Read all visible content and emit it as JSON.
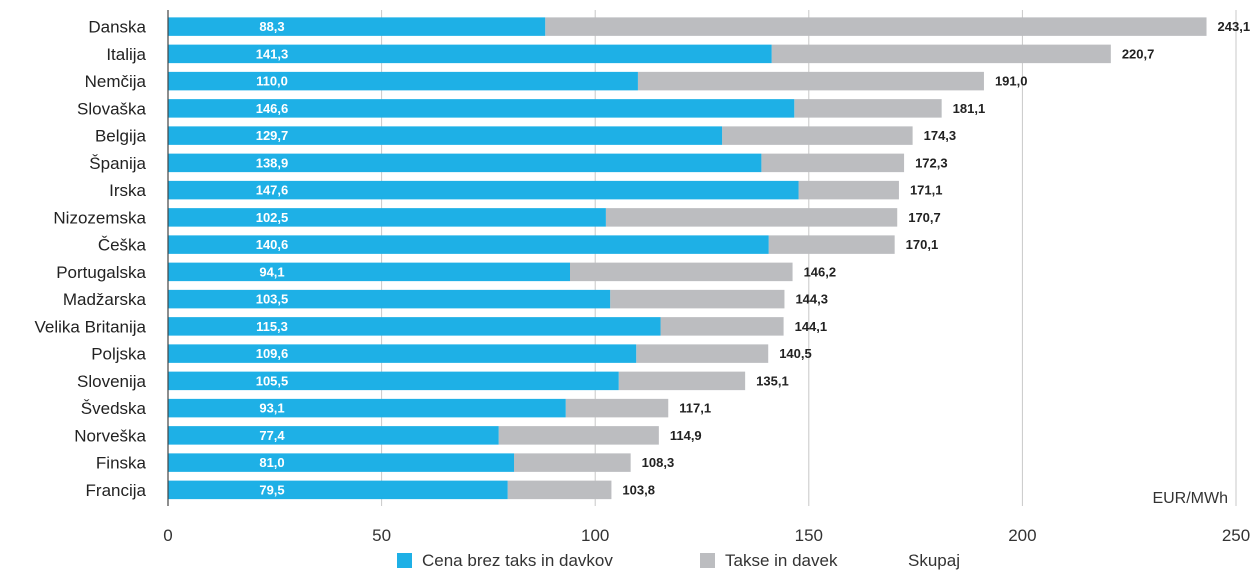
{
  "chart_data": {
    "type": "bar",
    "orientation": "horizontal",
    "stacked": true,
    "categories": [
      "Danska",
      "Italija",
      "Nemčija",
      "Slovaška",
      "Belgija",
      "Španija",
      "Irska",
      "Nizozemska",
      "Češka",
      "Portugalska",
      "Madžarska",
      "Velika Britanija",
      "Poljska",
      "Slovenija",
      "Švedska",
      "Norveška",
      "Finska",
      "Francija"
    ],
    "series": [
      {
        "name": "Cena brez taks in davkov",
        "color": "#1eb0e6",
        "values": [
          88.3,
          141.3,
          110.0,
          146.6,
          129.7,
          138.9,
          147.6,
          102.5,
          140.6,
          94.1,
          103.5,
          115.3,
          109.6,
          105.5,
          93.1,
          77.4,
          81.0,
          79.5
        ]
      },
      {
        "name": "Takse in davek",
        "color": "#bcbdc0"
      },
      {
        "name": "Skupaj",
        "values": [
          243.1,
          220.7,
          191.0,
          181.1,
          174.3,
          172.3,
          171.1,
          170.7,
          170.1,
          146.2,
          144.3,
          144.1,
          140.5,
          135.1,
          117.1,
          114.9,
          108.3,
          103.8
        ]
      }
    ],
    "labels_inside": [
      "88,3",
      "141,3",
      "110,0",
      "146,6",
      "129,7",
      "138,9",
      "147,6",
      "102,5",
      "140,6",
      "94,1",
      "103,5",
      "115,3",
      "109,6",
      "105,5",
      "93,1",
      "77,4",
      "81,0",
      "79,5"
    ],
    "labels_total": [
      "243,1",
      "220,7",
      "191,0",
      "181,1",
      "174,3",
      "172,3",
      "171,1",
      "170,7",
      "170,1",
      "146,2",
      "144,3",
      "144,1",
      "140,5",
      "135,1",
      "117,1",
      "114,9",
      "108,3",
      "103,8"
    ],
    "x_ticks": [
      0,
      50,
      100,
      150,
      200,
      250
    ],
    "xlim": [
      0,
      250
    ],
    "unit": "EUR/MWh",
    "grid": true,
    "legend": "bottom"
  }
}
